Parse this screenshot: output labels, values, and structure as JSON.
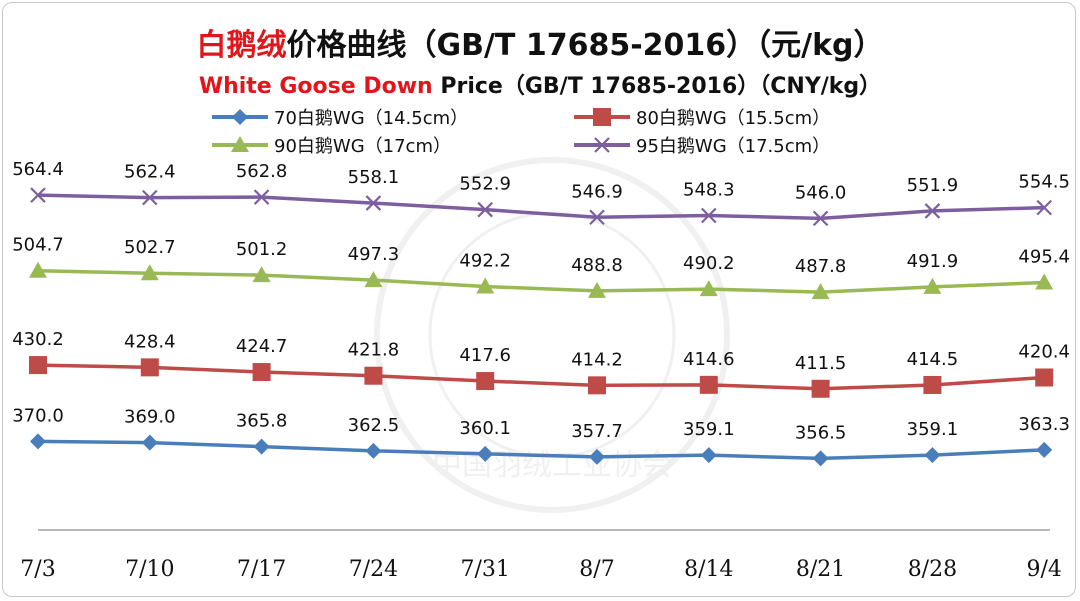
{
  "chart_data": {
    "type": "line",
    "title": {
      "cn_red": "白鹅绒",
      "cn_rest": "价格曲线（GB/T 17685-2016）（元/kg）",
      "en_red": "White Goose Down",
      "en_rest": " Price（GB/T 17685-2016）（CNY/kg）"
    },
    "categories": [
      "7/3",
      "7/10",
      "7/17",
      "7/24",
      "7/31",
      "8/7",
      "8/14",
      "8/21",
      "8/28",
      "9/4"
    ],
    "legend_position": "top",
    "grid": false,
    "ylim": [
      300,
      600
    ],
    "watermark": "中国羽绒工业协会",
    "series": [
      {
        "name": "70白鹅WG（14.5cm）",
        "marker": "diamond",
        "color": "#4a7ebb",
        "values": [
          370.0,
          369.0,
          365.8,
          362.5,
          360.1,
          357.7,
          359.1,
          356.5,
          359.1,
          363.3
        ],
        "labels": [
          "370.0",
          "369.0",
          "365.8",
          "362.5",
          "360.1",
          "357.7",
          "359.1",
          "356.5",
          "359.1",
          "363.3"
        ]
      },
      {
        "name": "80白鹅WG（15.5cm）",
        "marker": "square",
        "color": "#be4b48",
        "values": [
          430.2,
          428.4,
          424.7,
          421.8,
          417.6,
          414.2,
          414.6,
          411.5,
          414.5,
          420.4
        ],
        "labels": [
          "430.2",
          "428.4",
          "424.7",
          "421.8",
          "417.6",
          "414.2",
          "414.6",
          "411.5",
          "414.5",
          "420.4"
        ]
      },
      {
        "name": "90白鹅WG（17cm）",
        "marker": "triangle",
        "color": "#98b954",
        "values": [
          504.7,
          502.7,
          501.2,
          497.3,
          492.2,
          488.8,
          490.2,
          487.8,
          491.9,
          495.4
        ],
        "labels": [
          "504.7",
          "502.7",
          "501.2",
          "497.3",
          "492.2",
          "488.8",
          "490.2",
          "487.8",
          "491.9",
          "495.4"
        ]
      },
      {
        "name": "95白鹅WG（17.5cm）",
        "marker": "x",
        "color": "#7d5fa0",
        "values": [
          564.4,
          562.4,
          562.8,
          558.1,
          552.9,
          546.9,
          548.3,
          546.0,
          551.9,
          554.5
        ],
        "labels": [
          "564.4",
          "562.4",
          "562.8",
          "558.1",
          "552.9",
          "546.9",
          "548.3",
          "546.0",
          "551.9",
          "554.5"
        ]
      }
    ]
  }
}
